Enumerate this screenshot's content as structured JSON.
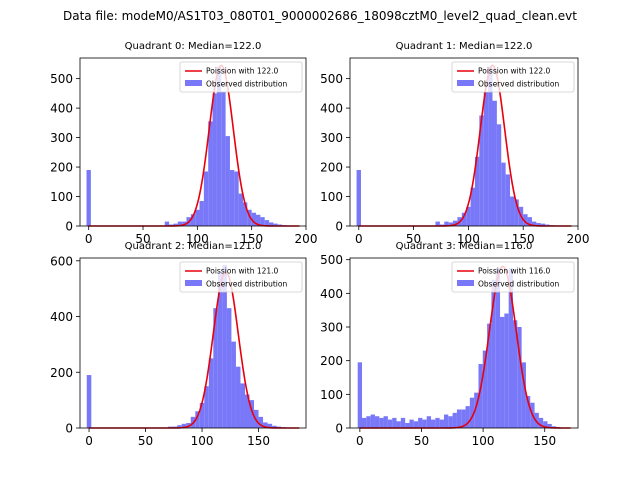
{
  "figure": {
    "suptitle": "Data file: modeM0/AS1T03_080T01_9000002686_18098cztM0_level2_quad_clean.evt"
  },
  "colors": {
    "hist": "#7878f8",
    "curve": "#e8000b",
    "axis": "#000000"
  },
  "chart_data": [
    {
      "type": "bar+line",
      "title": "Quadrant 0: Median=122.0",
      "xlim": [
        -8,
        200
      ],
      "ylim": [
        0,
        570
      ],
      "xticks": [
        "0",
        "50",
        "100",
        "150",
        "200"
      ],
      "xtick_values": [
        0,
        50,
        100,
        150,
        200
      ],
      "yticks": [
        "0",
        "100",
        "200",
        "300",
        "400",
        "500"
      ],
      "ytick_values": [
        0,
        100,
        200,
        300,
        400,
        500
      ],
      "legend": [
        "Poission with 122.0",
        "Observed distribution"
      ],
      "legend_location": "upper right",
      "lambda": 122.0,
      "line_peak": 545,
      "bin_width": 4,
      "hist": [
        {
          "x": 0,
          "y": 190
        },
        {
          "x": 4,
          "y": 2
        },
        {
          "x": 8,
          "y": 2
        },
        {
          "x": 12,
          "y": 2
        },
        {
          "x": 16,
          "y": 2
        },
        {
          "x": 20,
          "y": 2
        },
        {
          "x": 24,
          "y": 2
        },
        {
          "x": 28,
          "y": 2
        },
        {
          "x": 32,
          "y": 2
        },
        {
          "x": 36,
          "y": 2
        },
        {
          "x": 40,
          "y": 2
        },
        {
          "x": 44,
          "y": 2
        },
        {
          "x": 48,
          "y": 2
        },
        {
          "x": 52,
          "y": 2
        },
        {
          "x": 56,
          "y": 2
        },
        {
          "x": 60,
          "y": 2
        },
        {
          "x": 64,
          "y": 2
        },
        {
          "x": 68,
          "y": 2
        },
        {
          "x": 72,
          "y": 15
        },
        {
          "x": 76,
          "y": 5
        },
        {
          "x": 80,
          "y": 8
        },
        {
          "x": 84,
          "y": 15
        },
        {
          "x": 88,
          "y": 15
        },
        {
          "x": 92,
          "y": 30
        },
        {
          "x": 96,
          "y": 40
        },
        {
          "x": 100,
          "y": 55
        },
        {
          "x": 104,
          "y": 85
        },
        {
          "x": 108,
          "y": 185
        },
        {
          "x": 112,
          "y": 355
        },
        {
          "x": 116,
          "y": 450
        },
        {
          "x": 120,
          "y": 540
        },
        {
          "x": 124,
          "y": 455
        },
        {
          "x": 128,
          "y": 305
        },
        {
          "x": 132,
          "y": 190
        },
        {
          "x": 136,
          "y": 185
        },
        {
          "x": 140,
          "y": 110
        },
        {
          "x": 144,
          "y": 80
        },
        {
          "x": 148,
          "y": 55
        },
        {
          "x": 152,
          "y": 45
        },
        {
          "x": 156,
          "y": 38
        },
        {
          "x": 160,
          "y": 30
        },
        {
          "x": 164,
          "y": 20
        },
        {
          "x": 168,
          "y": 12
        },
        {
          "x": 172,
          "y": 8
        },
        {
          "x": 176,
          "y": 5
        },
        {
          "x": 180,
          "y": 3
        },
        {
          "x": 184,
          "y": 2
        },
        {
          "x": 188,
          "y": 2
        }
      ]
    },
    {
      "type": "bar+line",
      "title": "Quadrant 1: Median=122.0",
      "xlim": [
        -8,
        200
      ],
      "ylim": [
        0,
        570
      ],
      "xticks": [
        "0",
        "50",
        "100",
        "150",
        "200"
      ],
      "xtick_values": [
        0,
        50,
        100,
        150,
        200
      ],
      "yticks": [
        "0",
        "100",
        "200",
        "300",
        "400",
        "500"
      ],
      "ytick_values": [
        0,
        100,
        200,
        300,
        400,
        500
      ],
      "legend": [
        "Poission with 122.0",
        "Observed distribution"
      ],
      "legend_location": "upper right",
      "lambda": 122.0,
      "line_peak": 545,
      "bin_width": 4,
      "hist": [
        {
          "x": 0,
          "y": 190
        },
        {
          "x": 4,
          "y": 2
        },
        {
          "x": 8,
          "y": 2
        },
        {
          "x": 12,
          "y": 2
        },
        {
          "x": 16,
          "y": 2
        },
        {
          "x": 20,
          "y": 2
        },
        {
          "x": 24,
          "y": 2
        },
        {
          "x": 28,
          "y": 2
        },
        {
          "x": 32,
          "y": 2
        },
        {
          "x": 36,
          "y": 2
        },
        {
          "x": 40,
          "y": 2
        },
        {
          "x": 44,
          "y": 2
        },
        {
          "x": 48,
          "y": 2
        },
        {
          "x": 52,
          "y": 2
        },
        {
          "x": 56,
          "y": 2
        },
        {
          "x": 60,
          "y": 2
        },
        {
          "x": 64,
          "y": 2
        },
        {
          "x": 68,
          "y": 2
        },
        {
          "x": 72,
          "y": 15
        },
        {
          "x": 76,
          "y": 5
        },
        {
          "x": 80,
          "y": 15
        },
        {
          "x": 84,
          "y": 12
        },
        {
          "x": 88,
          "y": 18
        },
        {
          "x": 92,
          "y": 30
        },
        {
          "x": 96,
          "y": 45
        },
        {
          "x": 100,
          "y": 65
        },
        {
          "x": 104,
          "y": 130
        },
        {
          "x": 108,
          "y": 235
        },
        {
          "x": 112,
          "y": 375
        },
        {
          "x": 116,
          "y": 455
        },
        {
          "x": 120,
          "y": 540
        },
        {
          "x": 124,
          "y": 425
        },
        {
          "x": 128,
          "y": 345
        },
        {
          "x": 132,
          "y": 215
        },
        {
          "x": 136,
          "y": 175
        },
        {
          "x": 140,
          "y": 100
        },
        {
          "x": 144,
          "y": 90
        },
        {
          "x": 148,
          "y": 65
        },
        {
          "x": 152,
          "y": 40
        },
        {
          "x": 156,
          "y": 30
        },
        {
          "x": 160,
          "y": 15
        },
        {
          "x": 164,
          "y": 10
        },
        {
          "x": 168,
          "y": 8
        },
        {
          "x": 172,
          "y": 5
        },
        {
          "x": 176,
          "y": 3
        },
        {
          "x": 180,
          "y": 2
        },
        {
          "x": 184,
          "y": 2
        },
        {
          "x": 188,
          "y": 2
        }
      ]
    },
    {
      "type": "bar+line",
      "title": "Quadrant 2: Median=121.0",
      "xlim": [
        -8,
        192
      ],
      "ylim": [
        0,
        610
      ],
      "xticks": [
        "0",
        "50",
        "100",
        "150"
      ],
      "xtick_values": [
        0,
        50,
        100,
        150
      ],
      "yticks": [
        "0",
        "200",
        "400",
        "600"
      ],
      "ytick_values": [
        0,
        200,
        400,
        600
      ],
      "legend": [
        "Poission with 121.0",
        "Observed distribution"
      ],
      "legend_location": "upper right",
      "lambda": 121.0,
      "line_peak": 560,
      "bin_width": 4,
      "hist": [
        {
          "x": 0,
          "y": 190
        },
        {
          "x": 4,
          "y": 2
        },
        {
          "x": 8,
          "y": 2
        },
        {
          "x": 12,
          "y": 2
        },
        {
          "x": 16,
          "y": 2
        },
        {
          "x": 20,
          "y": 2
        },
        {
          "x": 24,
          "y": 2
        },
        {
          "x": 28,
          "y": 2
        },
        {
          "x": 32,
          "y": 2
        },
        {
          "x": 36,
          "y": 2
        },
        {
          "x": 40,
          "y": 2
        },
        {
          "x": 44,
          "y": 2
        },
        {
          "x": 48,
          "y": 2
        },
        {
          "x": 52,
          "y": 2
        },
        {
          "x": 56,
          "y": 2
        },
        {
          "x": 60,
          "y": 2
        },
        {
          "x": 64,
          "y": 2
        },
        {
          "x": 68,
          "y": 2
        },
        {
          "x": 72,
          "y": 5
        },
        {
          "x": 76,
          "y": 5
        },
        {
          "x": 80,
          "y": 10
        },
        {
          "x": 84,
          "y": 15
        },
        {
          "x": 88,
          "y": 18
        },
        {
          "x": 92,
          "y": 40
        },
        {
          "x": 96,
          "y": 60
        },
        {
          "x": 100,
          "y": 90
        },
        {
          "x": 104,
          "y": 150
        },
        {
          "x": 108,
          "y": 250
        },
        {
          "x": 112,
          "y": 430
        },
        {
          "x": 116,
          "y": 560
        },
        {
          "x": 120,
          "y": 585
        },
        {
          "x": 124,
          "y": 430
        },
        {
          "x": 128,
          "y": 310
        },
        {
          "x": 132,
          "y": 220
        },
        {
          "x": 136,
          "y": 160
        },
        {
          "x": 140,
          "y": 120
        },
        {
          "x": 144,
          "y": 100
        },
        {
          "x": 148,
          "y": 65
        },
        {
          "x": 152,
          "y": 40
        },
        {
          "x": 156,
          "y": 20
        },
        {
          "x": 160,
          "y": 15
        },
        {
          "x": 164,
          "y": 8
        },
        {
          "x": 168,
          "y": 5
        },
        {
          "x": 172,
          "y": 3
        },
        {
          "x": 176,
          "y": 2
        }
      ]
    },
    {
      "type": "bar+line",
      "title": "Quadrant 3: Median=116.0",
      "xlim": [
        -8,
        177
      ],
      "ylim": [
        0,
        505
      ],
      "xticks": [
        "0",
        "50",
        "100",
        "150"
      ],
      "xtick_values": [
        0,
        50,
        100,
        150
      ],
      "yticks": [
        "0",
        "100",
        "200",
        "300",
        "400",
        "500"
      ],
      "ytick_values": [
        0,
        100,
        200,
        300,
        400,
        500
      ],
      "legend": [
        "Poission with 116.0",
        "Observed distribution"
      ],
      "legend_location": "upper right",
      "lambda": 116.0,
      "line_peak": 480,
      "bin_width": 3.5,
      "hist": [
        {
          "x": 0,
          "y": 195
        },
        {
          "x": 3.5,
          "y": 30
        },
        {
          "x": 7,
          "y": 35
        },
        {
          "x": 10.5,
          "y": 40
        },
        {
          "x": 14,
          "y": 35
        },
        {
          "x": 17.5,
          "y": 30
        },
        {
          "x": 21,
          "y": 35
        },
        {
          "x": 24.5,
          "y": 25
        },
        {
          "x": 28,
          "y": 30
        },
        {
          "x": 31.5,
          "y": 20
        },
        {
          "x": 35,
          "y": 30
        },
        {
          "x": 38.5,
          "y": 15
        },
        {
          "x": 42,
          "y": 25
        },
        {
          "x": 45.5,
          "y": 20
        },
        {
          "x": 49,
          "y": 30
        },
        {
          "x": 52.5,
          "y": 25
        },
        {
          "x": 56,
          "y": 35
        },
        {
          "x": 59.5,
          "y": 25
        },
        {
          "x": 63,
          "y": 30
        },
        {
          "x": 66.5,
          "y": 25
        },
        {
          "x": 70,
          "y": 40
        },
        {
          "x": 73.5,
          "y": 35
        },
        {
          "x": 77,
          "y": 45
        },
        {
          "x": 80.5,
          "y": 55
        },
        {
          "x": 84,
          "y": 55
        },
        {
          "x": 87.5,
          "y": 65
        },
        {
          "x": 91,
          "y": 90
        },
        {
          "x": 94.5,
          "y": 105
        },
        {
          "x": 98,
          "y": 190
        },
        {
          "x": 101.5,
          "y": 230
        },
        {
          "x": 105,
          "y": 310
        },
        {
          "x": 108.5,
          "y": 440
        },
        {
          "x": 112,
          "y": 475
        },
        {
          "x": 115.5,
          "y": 330
        },
        {
          "x": 119,
          "y": 340
        },
        {
          "x": 122.5,
          "y": 475
        },
        {
          "x": 126,
          "y": 320
        },
        {
          "x": 129.5,
          "y": 300
        },
        {
          "x": 133,
          "y": 195
        },
        {
          "x": 136.5,
          "y": 95
        },
        {
          "x": 140,
          "y": 75
        },
        {
          "x": 143.5,
          "y": 45
        },
        {
          "x": 147,
          "y": 30
        },
        {
          "x": 150.5,
          "y": 20
        },
        {
          "x": 154,
          "y": 12
        },
        {
          "x": 157.5,
          "y": 5
        },
        {
          "x": 161,
          "y": 3
        }
      ]
    }
  ]
}
